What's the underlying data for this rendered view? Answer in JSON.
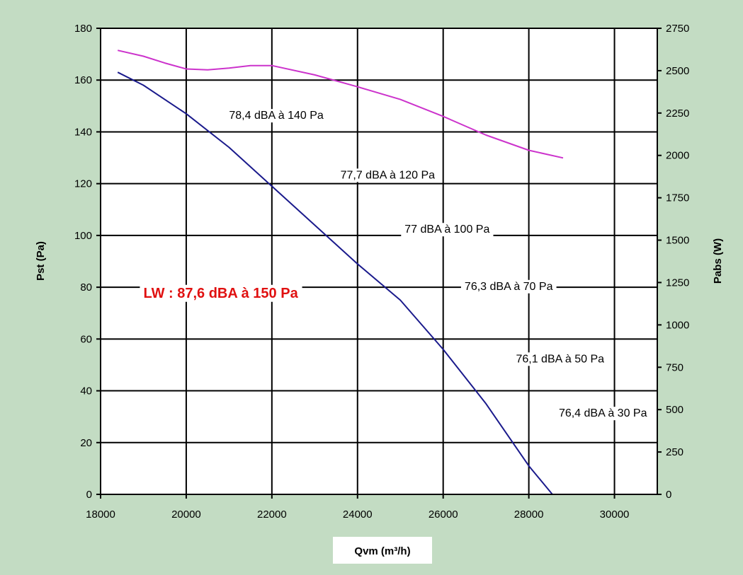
{
  "chart_data": {
    "type": "line",
    "xlabel": "Qvm (m³/h)",
    "ylabel": "Pst  (Pa)",
    "y2label": "Pabs (W)",
    "xlim": [
      18000,
      31000
    ],
    "ylim": [
      0,
      180
    ],
    "y2lim": [
      0,
      2750
    ],
    "x_ticks": [
      18000,
      20000,
      22000,
      24000,
      26000,
      28000,
      30000
    ],
    "y_ticks": [
      0,
      20,
      40,
      60,
      80,
      100,
      120,
      140,
      160,
      180
    ],
    "y2_ticks": [
      0,
      250,
      500,
      750,
      1000,
      1250,
      1500,
      1750,
      2000,
      2250,
      2500,
      2750
    ],
    "grid": true,
    "series": [
      {
        "axis": "left",
        "color": "#1a1a8c",
        "x": [
          18400,
          19000,
          20000,
          21000,
          22000,
          23000,
          24000,
          25000,
          26000,
          27000,
          28000,
          28550
        ],
        "y": [
          163,
          158,
          147,
          134,
          119,
          104,
          89,
          75,
          56,
          35,
          11,
          0
        ]
      },
      {
        "axis": "right",
        "color": "#cc33cc",
        "x": [
          18400,
          19000,
          19500,
          20000,
          20500,
          21000,
          21500,
          22000,
          23000,
          24000,
          25000,
          26000,
          27000,
          28000,
          28800
        ],
        "y": [
          2620,
          2585,
          2545,
          2510,
          2505,
          2515,
          2530,
          2530,
          2475,
          2405,
          2330,
          2230,
          2120,
          2030,
          1985
        ]
      }
    ],
    "annotations": [
      {
        "text": "78,4 dBA à 140 Pa",
        "x": 21000,
        "y": 145
      },
      {
        "text": "77,7 dBA à 120 Pa",
        "x": 23600,
        "y": 122
      },
      {
        "text": "77 dBA à 100 Pa",
        "x": 25100,
        "y": 101
      },
      {
        "text": "76,3 dBA à 70 Pa",
        "x": 26500,
        "y": 79
      },
      {
        "text": "76,1 dBA à 50 Pa",
        "x": 27700,
        "y": 51
      },
      {
        "text": "76,4 dBA à 30 Pa",
        "x": 28700,
        "y": 30
      }
    ],
    "highlight": {
      "text": "LW : 87,6 dBA à 150 Pa",
      "x": 19000,
      "y": 76,
      "color": "#e01010"
    }
  }
}
